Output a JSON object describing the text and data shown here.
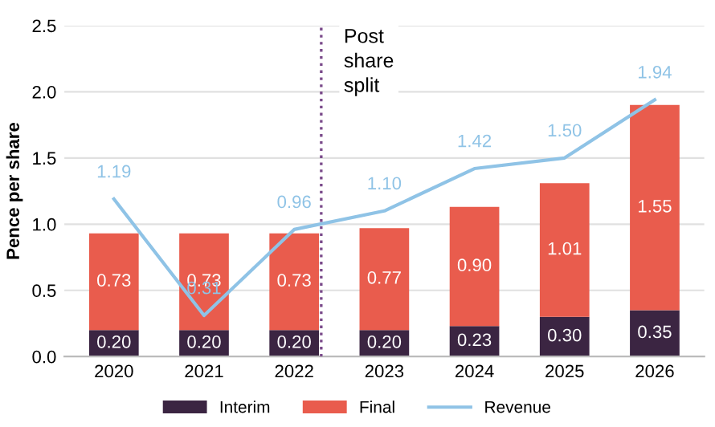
{
  "chart_data": {
    "type": "bar",
    "stacked": true,
    "ylabel": "Pence per share",
    "x": [
      2020,
      2021,
      2022,
      2023,
      2024,
      2025,
      2026
    ],
    "xlim": [
      2019.45,
      2026.55
    ],
    "xticks": [
      2020,
      2021,
      2022,
      2023,
      2024,
      2025,
      2026
    ],
    "ylim": [
      0,
      2.5
    ],
    "yticks": [
      {
        "value": 0,
        "label": "0.0"
      },
      0.5,
      {
        "value": 1,
        "label": "1.0"
      },
      1.5,
      {
        "value": 2,
        "label": "2.0"
      },
      2.5
    ],
    "series": [
      {
        "name": "Interim",
        "color": "#3b2542",
        "values": [
          0.2,
          0.2,
          0.2,
          0.2,
          0.23,
          0.3,
          0.35
        ],
        "value_labels": [
          "0.20",
          "0.20",
          "0.20",
          "0.20",
          "0.23",
          "0.30",
          "0.35"
        ]
      },
      {
        "name": "Final",
        "color": "#e95c4d",
        "values": [
          0.73,
          0.73,
          0.73,
          0.77,
          0.9,
          1.01,
          1.55
        ],
        "value_labels": [
          "0.73",
          "0.73",
          "0.73",
          "0.77",
          "0.90",
          "1.01",
          "1.55"
        ]
      },
      {
        "name": "Revenue",
        "type": "line",
        "color": "#8fc3e6",
        "values": [
          1.19,
          0.31,
          0.96,
          1.1,
          1.42,
          1.5,
          1.94
        ],
        "value_labels": [
          "1.19",
          "0.31",
          "0.96",
          "1.10",
          "1.42",
          "1.50",
          "1.94"
        ]
      }
    ],
    "ref_lines": [
      {
        "axis": "x",
        "value": 2022.3,
        "label": "Post\nshare\nsplit",
        "color": "#7a4a8a",
        "line_style": "dotted"
      }
    ],
    "grid": "y",
    "legend": "bottom",
    "marker": "none"
  }
}
